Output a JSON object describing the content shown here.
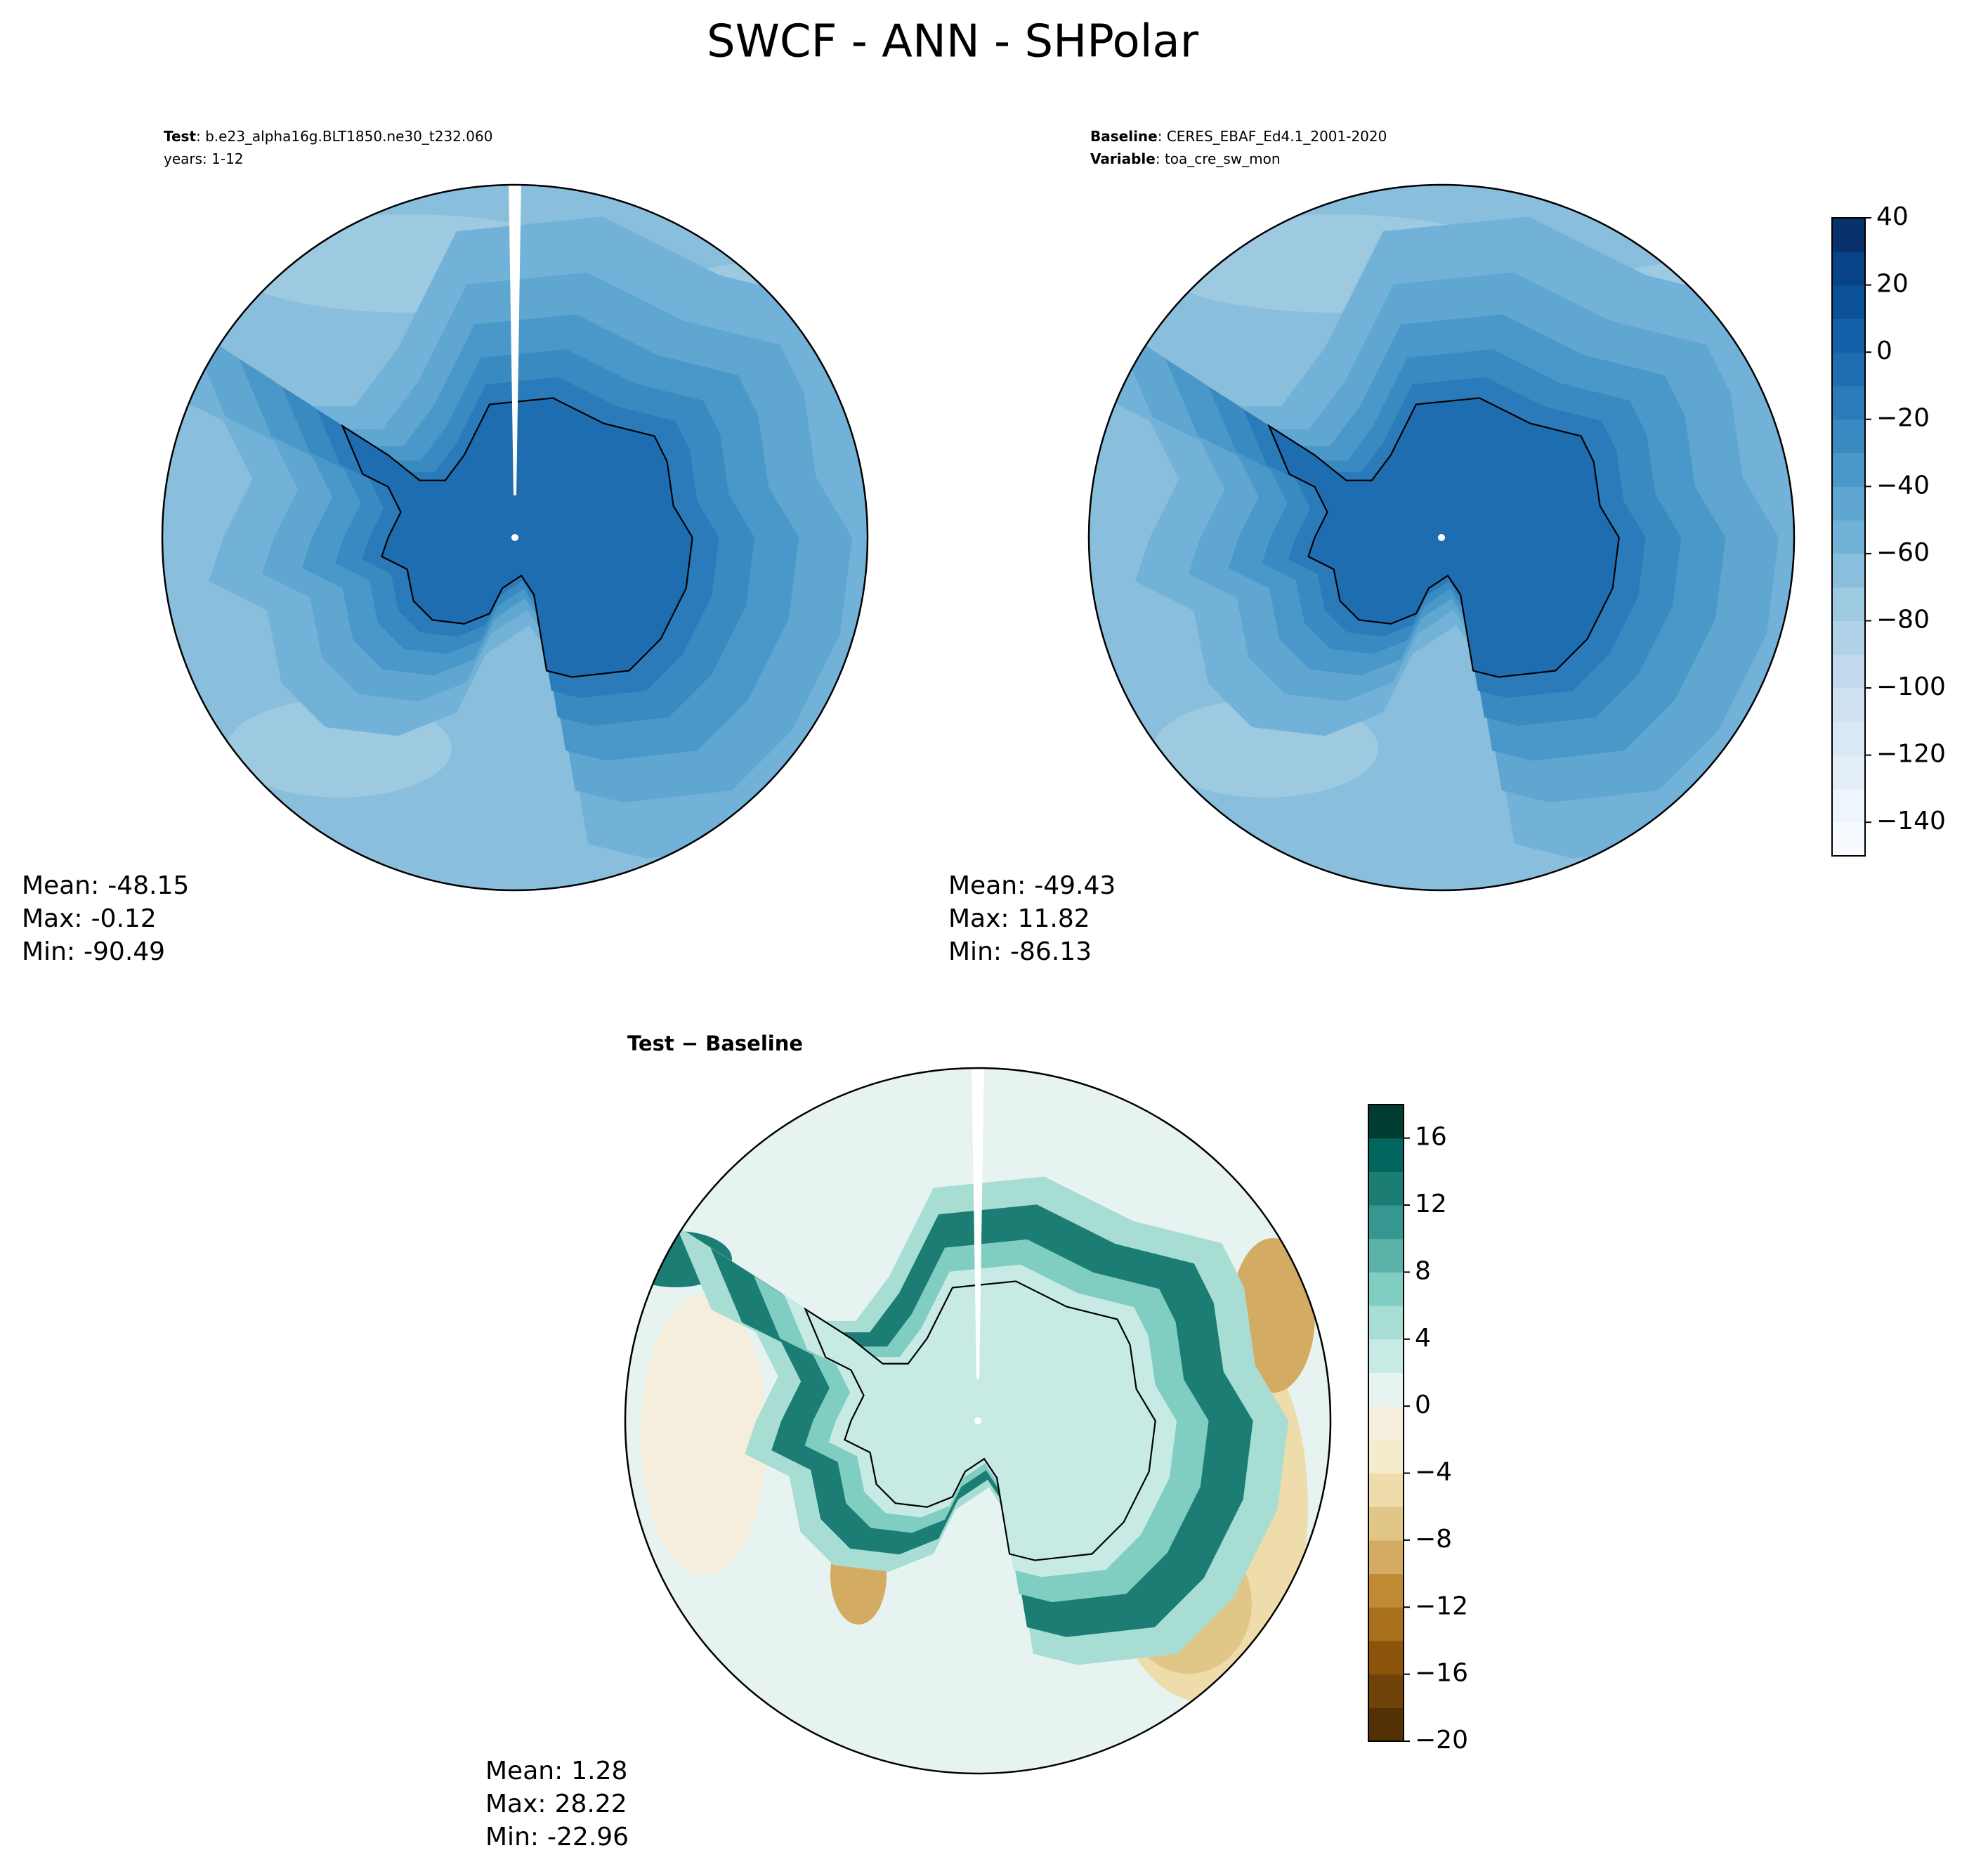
{
  "chart_data": {
    "type": "contour-map",
    "title": "SWCF - ANN - SHPolar",
    "panels": [
      {
        "colorbar": 0,
        "header": [
          {
            "key": "Test",
            "text": ": b.e23_alpha16g.BLT1850.ne30_t232.060"
          },
          {
            "text": "years: 1-12"
          }
        ],
        "stats": [
          {
            "label": "Mean:",
            "value": -48.15
          },
          {
            "label": "Max:",
            "value": -0.12
          },
          {
            "label": "Min:",
            "value": -90.49
          }
        ]
      },
      {
        "colorbar": 0,
        "header": [
          {
            "key": "Baseline",
            "text": ": CERES_EBAF_Ed4.1_2001-2020"
          },
          {
            "key": "Variable",
            "text": ": toa_cre_sw_mon"
          }
        ],
        "stats": [
          {
            "label": "Mean:",
            "value": -49.43
          },
          {
            "label": "Max:",
            "value": 11.82
          },
          {
            "label": "Min:",
            "value": -86.13
          }
        ]
      },
      {
        "colorbar": 1,
        "header": [
          {
            "key": "Test − Baseline"
          }
        ],
        "stats": [
          {
            "label": "Mean:",
            "value": 1.28
          },
          {
            "label": "Max:",
            "value": 28.22
          },
          {
            "label": "Min:",
            "value": -22.96
          }
        ]
      }
    ],
    "colorbars": [
      {
        "lim": [
          -150,
          40
        ],
        "ticks": [
          {
            "value": -140,
            "label": "−140"
          },
          {
            "value": -120,
            "label": "−120"
          },
          {
            "value": -100,
            "label": "−100"
          },
          {
            "value": -80,
            "label": "−80"
          },
          {
            "value": -60,
            "label": "−60"
          },
          {
            "value": -40,
            "label": "−40"
          },
          {
            "value": -20,
            "label": "−20"
          },
          0,
          20,
          40
        ],
        "colors": [
          "#f7fbff",
          "#eef5fc",
          "#e3eef9",
          "#d9e8f5",
          "#cfe1f2",
          "#c2d9ee",
          "#b0d2e8",
          "#9dc9e1",
          "#89bedc",
          "#73b2d8",
          "#5fa6d1",
          "#4a98c9",
          "#3a8ac2",
          "#2b7bba",
          "#1f6db1",
          "#1460a8",
          "#0b5198",
          "#084287",
          "#08306b"
        ]
      },
      {
        "lim": [
          -20,
          18
        ],
        "ticks": [
          {
            "value": -20,
            "label": "−20"
          },
          {
            "value": -16,
            "label": "−16"
          },
          {
            "value": -12,
            "label": "−12"
          },
          {
            "value": -8,
            "label": "−8"
          },
          {
            "value": -4,
            "label": "−4"
          },
          0,
          4,
          8,
          12,
          16
        ],
        "colors": [
          "#543005",
          "#6f4208",
          "#8c540a",
          "#a8701c",
          "#c08a34",
          "#d3ab62",
          "#e1c687",
          "#eedcab",
          "#f5ebcd",
          "#f5eedc",
          "#e6f3f1",
          "#c7eae5",
          "#a8ddd4",
          "#80cdc1",
          "#5ab2a8",
          "#35978f",
          "#1b7d74",
          "#01665e",
          "#003c30"
        ]
      }
    ]
  }
}
